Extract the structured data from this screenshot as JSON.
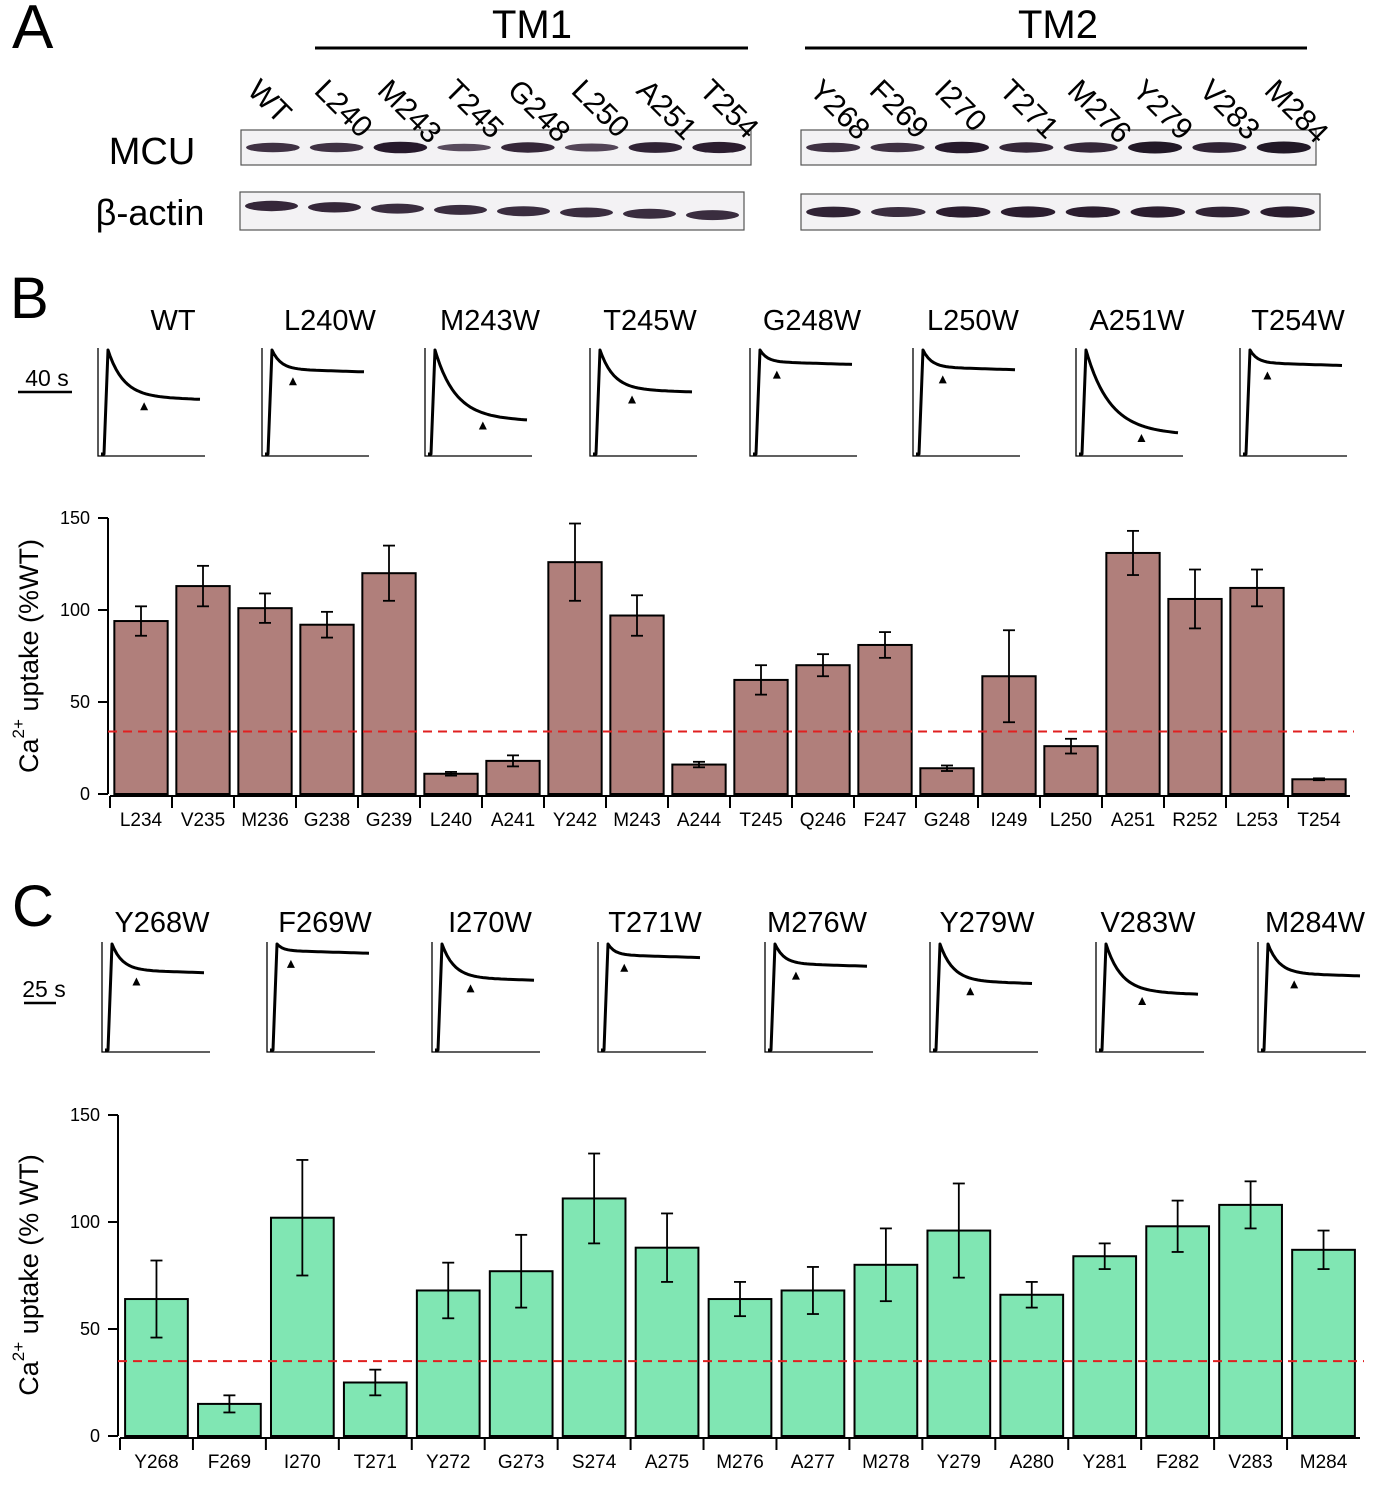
{
  "panel_a": {
    "letter": "A",
    "groups": [
      {
        "title": "TM1",
        "lanes": [
          "WT",
          "L240",
          "M243",
          "T245",
          "G248",
          "L250",
          "A251",
          "T254"
        ],
        "mcu_band_intensity": [
          0.7,
          0.7,
          0.95,
          0.45,
          0.8,
          0.5,
          0.85,
          0.9
        ],
        "actin_band_intensity": [
          0.8,
          0.8,
          0.75,
          0.75,
          0.75,
          0.75,
          0.75,
          0.75
        ]
      },
      {
        "title": "TM2",
        "lanes": [
          "Y268",
          "F269",
          "I270",
          "T271",
          "M276",
          "Y279",
          "V283",
          "M284"
        ],
        "mcu_band_intensity": [
          0.7,
          0.7,
          0.95,
          0.8,
          0.8,
          1.0,
          0.85,
          1.0
        ],
        "actin_band_intensity": [
          0.85,
          0.75,
          0.9,
          0.9,
          0.9,
          0.9,
          0.85,
          0.9
        ]
      }
    ],
    "row_labels": {
      "mcu": "MCU",
      "actin": "β-actin"
    }
  },
  "panel_b_traces": {
    "letter": "B",
    "scale_bar": "40 s",
    "traces": [
      {
        "label": "WT",
        "residual_fraction": 0.56
      },
      {
        "label": "L240W",
        "residual_fraction": 0.82
      },
      {
        "label": "M243W",
        "residual_fraction": 0.36
      },
      {
        "label": "T245W",
        "residual_fraction": 0.63
      },
      {
        "label": "G248W",
        "residual_fraction": 0.89
      },
      {
        "label": "L250W",
        "residual_fraction": 0.84
      },
      {
        "label": "A251W",
        "residual_fraction": 0.23
      },
      {
        "label": "T254W",
        "residual_fraction": 0.88
      }
    ]
  },
  "panel_c_traces": {
    "letter": "C",
    "scale_bar": "25 s",
    "traces": [
      {
        "label": "Y268W",
        "residual_fraction": 0.76
      },
      {
        "label": "F269W",
        "residual_fraction": 0.94
      },
      {
        "label": "I270W",
        "residual_fraction": 0.69
      },
      {
        "label": "T271W",
        "residual_fraction": 0.9
      },
      {
        "label": "M276W",
        "residual_fraction": 0.82
      },
      {
        "label": "Y279W",
        "residual_fraction": 0.66
      },
      {
        "label": "V283W",
        "residual_fraction": 0.56
      },
      {
        "label": "M284W",
        "residual_fraction": 0.73
      }
    ]
  },
  "chart_data": [
    {
      "type": "bar",
      "ylabel": "Ca2+ uptake (%WT)",
      "ylabel_main": "Ca",
      "ylabel_sup": "2+",
      "ylabel_rest": " uptake (%WT)",
      "ylim": [
        0,
        150
      ],
      "yticks": [
        0,
        50,
        100,
        150
      ],
      "threshold": 34,
      "bar_color": "#b07f7b",
      "threshold_color": "#e02020",
      "categories": [
        "L234",
        "V235",
        "M236",
        "G238",
        "G239",
        "L240",
        "A241",
        "Y242",
        "M243",
        "A244",
        "T245",
        "Q246",
        "F247",
        "G248",
        "I249",
        "L250",
        "A251",
        "R252",
        "L253",
        "T254"
      ],
      "values": [
        94,
        113,
        101,
        92,
        120,
        11,
        18,
        126,
        97,
        16,
        62,
        70,
        81,
        14,
        64,
        26,
        131,
        106,
        112,
        8
      ],
      "errors": [
        8,
        11,
        8,
        7,
        15,
        1,
        3,
        21,
        11,
        1.5,
        8,
        6,
        7,
        1.5,
        25,
        4,
        12,
        16,
        10,
        0.5
      ]
    },
    {
      "type": "bar",
      "ylabel": "Ca2+ uptake (% WT)",
      "ylabel_main": "Ca",
      "ylabel_sup": "2+",
      "ylabel_rest": " uptake (% WT)",
      "ylim": [
        0,
        150
      ],
      "yticks": [
        0,
        50,
        100,
        150
      ],
      "threshold": 35,
      "bar_color": "#80e6b3",
      "threshold_color": "#e02020",
      "categories": [
        "Y268",
        "F269",
        "I270",
        "T271",
        "Y272",
        "G273",
        "S274",
        "A275",
        "M276",
        "A277",
        "M278",
        "Y279",
        "A280",
        "Y281",
        "F282",
        "V283",
        "M284"
      ],
      "values": [
        64,
        15,
        102,
        25,
        68,
        77,
        111,
        88,
        64,
        68,
        80,
        96,
        66,
        84,
        98,
        108,
        87
      ],
      "errors": [
        18,
        4,
        27,
        6,
        13,
        17,
        21,
        16,
        8,
        11,
        17,
        22,
        6,
        6,
        12,
        11,
        9
      ]
    }
  ]
}
